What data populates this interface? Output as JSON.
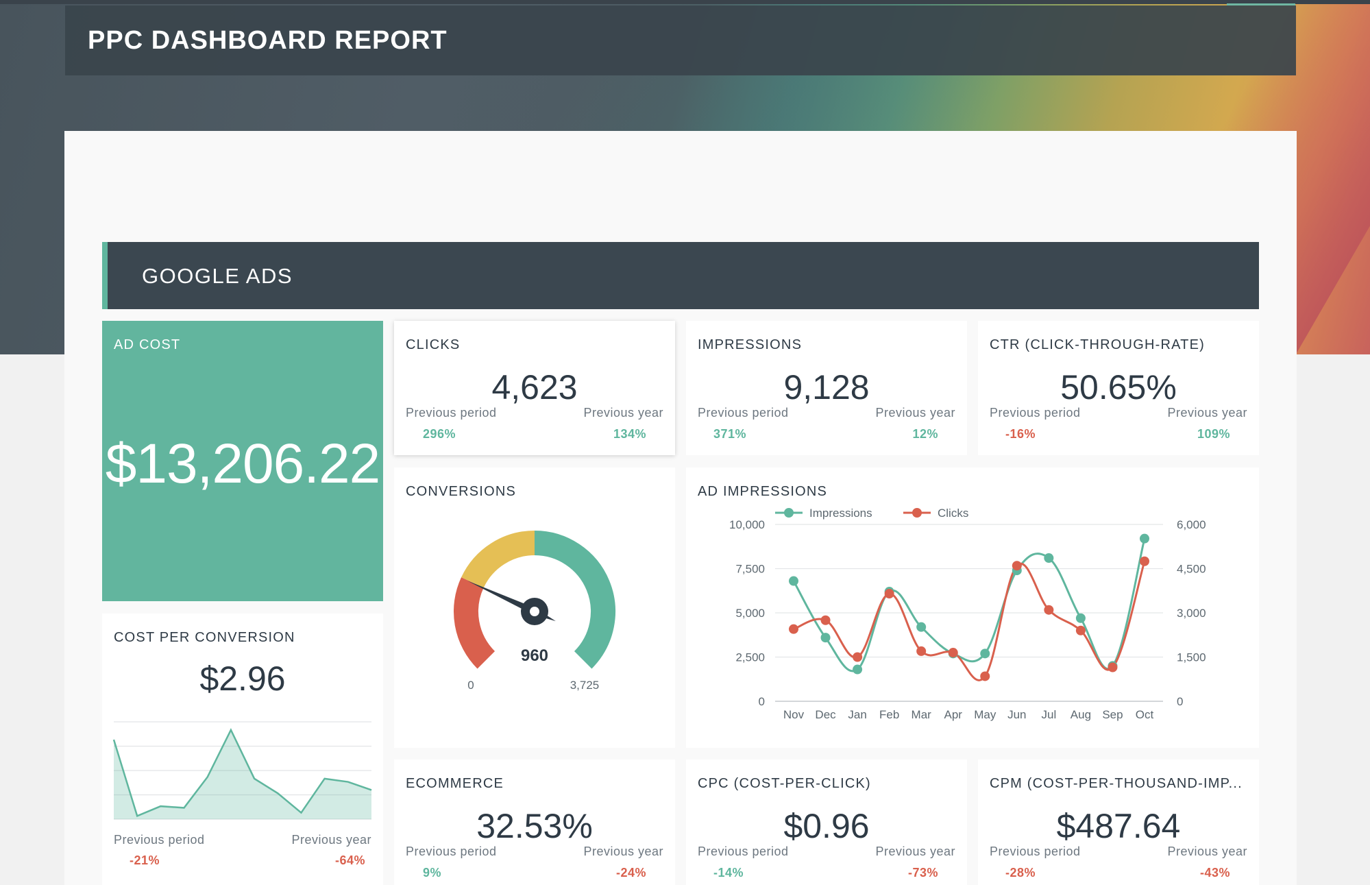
{
  "header": {
    "title": "PPC DASHBOARD REPORT"
  },
  "section": {
    "title": "GOOGLE ADS"
  },
  "colors": {
    "accent": "#5fb69e",
    "negative": "#d9604d",
    "gauge_yellow": "#e5bf55",
    "dark": "#3b4750"
  },
  "ad_cost": {
    "title": "AD COST",
    "value": "$13,206.22"
  },
  "clicks": {
    "title": "CLICKS",
    "value": "4,623",
    "prev_period_label": "Previous period",
    "prev_period": "296%",
    "prev_year_label": "Previous year",
    "prev_year": "134%"
  },
  "impressions": {
    "title": "IMPRESSIONS",
    "value": "9,128",
    "prev_period_label": "Previous period",
    "prev_period": "371%",
    "prev_year_label": "Previous year",
    "prev_year": "12%"
  },
  "ctr": {
    "title": "CTR (CLICK-THROUGH-RATE)",
    "value": "50.65%",
    "prev_period_label": "Previous period",
    "prev_period": "-16%",
    "prev_year_label": "Previous year",
    "prev_year": "109%"
  },
  "conversions": {
    "title": "CONVERSIONS",
    "value": "960",
    "min_label": "0",
    "max_label": "3,725",
    "value_num": 960,
    "max_num": 3725
  },
  "cost_per_conversion": {
    "title": "COST PER CONVERSION",
    "value": "$2.96",
    "prev_period_label": "Previous period",
    "prev_period": "-21%",
    "prev_year_label": "Previous year",
    "prev_year": "-64%"
  },
  "ecommerce": {
    "title": "ECOMMERCE",
    "value": "32.53%",
    "prev_period_label": "Previous period",
    "prev_period": "9%",
    "prev_year_label": "Previous year",
    "prev_year": "-24%"
  },
  "cpc": {
    "title": "CPC (COST-PER-CLICK)",
    "value": "$0.96",
    "prev_period_label": "Previous period",
    "prev_period": "-14%",
    "prev_year_label": "Previous year",
    "prev_year": "-73%"
  },
  "cpm": {
    "title": "CPM (COST-PER-THOUSAND-IMP...",
    "value": "$487.64",
    "prev_period_label": "Previous period",
    "prev_period": "-28%",
    "prev_year_label": "Previous year",
    "prev_year": "-43%"
  },
  "ad_impressions": {
    "title": "AD IMPRESSIONS"
  },
  "chart_data": [
    {
      "type": "line",
      "x": [
        "Nov",
        "Dec",
        "Jan",
        "Feb",
        "Mar",
        "Apr",
        "May",
        "Jun",
        "Jul",
        "Aug",
        "Sep",
        "Oct"
      ],
      "series": [
        {
          "name": "Impressions",
          "axis": "left",
          "color": "#5fb69e",
          "values": [
            6800,
            3600,
            1800,
            6200,
            4200,
            2700,
            2700,
            7400,
            8100,
            4700,
            2000,
            9200
          ]
        },
        {
          "name": "Clicks",
          "axis": "right",
          "color": "#d9604d",
          "values": [
            2450,
            2750,
            1500,
            3650,
            1700,
            1650,
            850,
            4600,
            3100,
            2400,
            1150,
            4750
          ]
        }
      ],
      "y_left": {
        "ticks": [
          "10,000",
          "7,500",
          "5,000",
          "2,500",
          "0"
        ],
        "min": 0,
        "max": 10000
      },
      "y_right": {
        "ticks": [
          "6,000",
          "4,500",
          "3,000",
          "1,500",
          "0"
        ],
        "min": 0,
        "max": 6000
      },
      "legend": "top-left",
      "grid": true
    },
    {
      "type": "area",
      "values": [
        4.9,
        0.2,
        0.8,
        0.7,
        2.6,
        5.5,
        2.5,
        1.6,
        0.4,
        2.5,
        2.3,
        1.8
      ],
      "ylim": [
        0,
        6
      ],
      "grid": true,
      "color": "#5fb69e"
    }
  ]
}
